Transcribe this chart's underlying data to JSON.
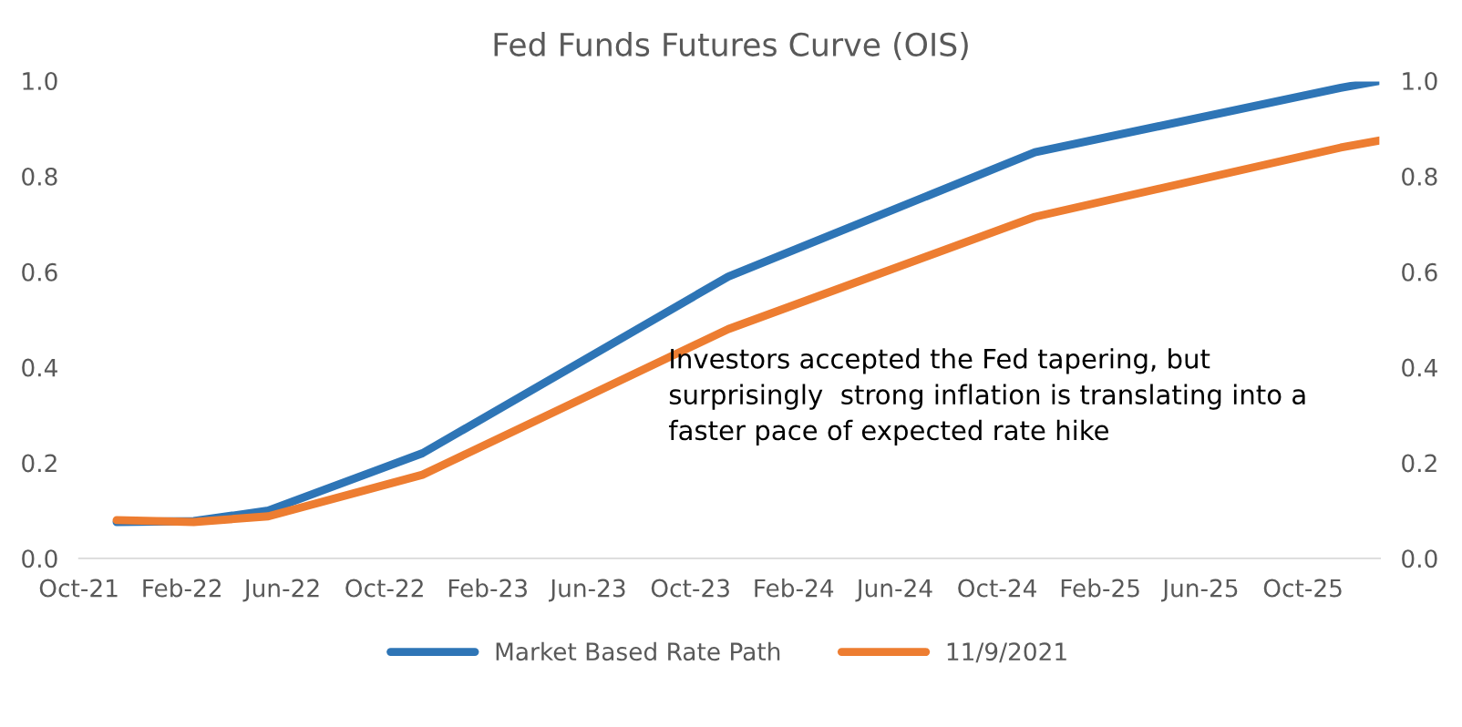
{
  "chart_data": {
    "type": "line",
    "title": "Fed Funds Futures Curve (OIS)",
    "x": [
      "2021-11-15",
      "2022-02-15",
      "2022-05-15",
      "2022-11-15",
      "2023-11-15",
      "2024-11-15",
      "2025-11-15",
      "2026-01-01"
    ],
    "series": [
      {
        "name": "Market Based Rate Path",
        "color": "#2e75b6",
        "values": [
          0.076,
          0.078,
          0.1,
          0.22,
          0.59,
          0.85,
          0.985,
          1.0
        ]
      },
      {
        "name": "11/9/2021",
        "color": "#ed7d31",
        "values": [
          0.08,
          0.076,
          0.088,
          0.175,
          0.48,
          0.715,
          0.86,
          0.875
        ]
      }
    ],
    "xlim": [
      "2021-10-01",
      "2026-01-01"
    ],
    "xticks": [
      {
        "value": "2021-10-01",
        "label": "Oct-21"
      },
      {
        "value": "2022-02-01",
        "label": "Feb-22"
      },
      {
        "value": "2022-06-01",
        "label": "Jun-22"
      },
      {
        "value": "2022-10-01",
        "label": "Oct-22"
      },
      {
        "value": "2023-02-01",
        "label": "Feb-23"
      },
      {
        "value": "2023-06-01",
        "label": "Jun-23"
      },
      {
        "value": "2023-10-01",
        "label": "Oct-23"
      },
      {
        "value": "2024-02-01",
        "label": "Feb-24"
      },
      {
        "value": "2024-06-01",
        "label": "Jun-24"
      },
      {
        "value": "2024-10-01",
        "label": "Oct-24"
      },
      {
        "value": "2025-02-01",
        "label": "Feb-25"
      },
      {
        "value": "2025-06-01",
        "label": "Jun-25"
      },
      {
        "value": "2025-10-01",
        "label": "Oct-25"
      }
    ],
    "ylim": [
      0,
      1.0
    ],
    "yticks": [
      {
        "value": 0,
        "label": "0.0"
      },
      {
        "value": 0.2,
        "label": "0.2"
      },
      {
        "value": 0.4,
        "label": "0.4"
      },
      {
        "value": 0.6,
        "label": "0.6"
      },
      {
        "value": 0.8,
        "label": "0.8"
      },
      {
        "value": 1.0,
        "label": "1.0"
      }
    ],
    "y2lim": [
      0,
      1.0
    ],
    "y2ticks": [
      {
        "value": 0,
        "label": "0.0"
      },
      {
        "value": 0.2,
        "label": "0.2"
      },
      {
        "value": 0.4,
        "label": "0.4"
      },
      {
        "value": 0.6,
        "label": "0.6"
      },
      {
        "value": 0.8,
        "label": "0.8"
      },
      {
        "value": 1.0,
        "label": "1.0"
      }
    ],
    "annotations": [
      "Investors accepted the Fed tapering, but\nsurprisingly  strong inflation is translating into a\nfaster pace of expected rate hike"
    ],
    "grid": false,
    "legend": "bottom",
    "marker": "none",
    "line_style": "solid"
  }
}
